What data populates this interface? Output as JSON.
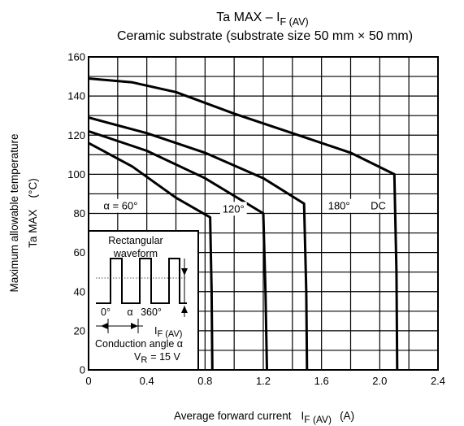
{
  "chart_data": {
    "type": "line",
    "title": {
      "main": "Ta MAX – I",
      "sub": "F (AV)"
    },
    "subtitle": "Ceramic substrate (substrate size 50 mm × 50 mm)",
    "xlabel": {
      "text": "Average forward current",
      "symbol": "I",
      "sub": "F (AV)",
      "unit": "(A)"
    },
    "ylabel": {
      "line1": "Maximum allowable temperature",
      "line2": "Ta MAX",
      "unit": "(°C)"
    },
    "xlim": [
      0,
      2.4
    ],
    "ylim": [
      0,
      160
    ],
    "x_ticks": [
      0,
      0.4,
      0.8,
      1.2,
      1.6,
      2.0,
      2.4
    ],
    "x_tick_labels": [
      "0",
      "0.4",
      "0.8",
      "1.2",
      "1.6",
      "2.0",
      "2.4"
    ],
    "y_ticks": [
      0,
      20,
      40,
      60,
      80,
      100,
      120,
      140,
      160
    ],
    "y_tick_labels": [
      "0",
      "20",
      "40",
      "60",
      "80",
      "100",
      "120",
      "140",
      "160"
    ],
    "x_grid_step": 0.2,
    "y_grid_step": 10,
    "grid": true,
    "series": [
      {
        "name": "α = 60°",
        "x": [
          0,
          0.3,
          0.6,
          0.835,
          0.845,
          0.85
        ],
        "y": [
          116,
          104,
          88,
          78,
          40,
          0
        ],
        "label_at": [
          0.22,
          82
        ]
      },
      {
        "name": "120°",
        "x": [
          0,
          0.4,
          0.8,
          1.2,
          1.215,
          1.225
        ],
        "y": [
          122,
          112,
          98,
          80,
          40,
          0
        ],
        "label_at": [
          0.995,
          80.5
        ]
      },
      {
        "name": "180°",
        "x": [
          0,
          0.4,
          0.8,
          1.2,
          1.48,
          1.495,
          1.5
        ],
        "y": [
          129,
          121,
          111,
          98,
          85,
          40,
          0
        ],
        "label_at": [
          1.72,
          82
        ]
      },
      {
        "name": "DC",
        "x": [
          0,
          0.3,
          0.6,
          1.0,
          1.4,
          1.8,
          2.1,
          2.115,
          2.12
        ],
        "y": [
          149,
          147,
          142,
          131,
          121,
          111,
          100,
          50,
          0
        ],
        "label_at": [
          1.99,
          82
        ]
      }
    ],
    "inset": {
      "title_line1": "Rectangular",
      "title_line2": "waveform",
      "angle_start": "0°",
      "angle_alpha": "α",
      "angle_end": "360°",
      "current_symbol": "I",
      "current_sub": "F (AV)",
      "conduction_label": "Conduction angle α",
      "voltage_symbol": "V",
      "voltage_sub": "R",
      "voltage_value": "= 15 V"
    }
  }
}
